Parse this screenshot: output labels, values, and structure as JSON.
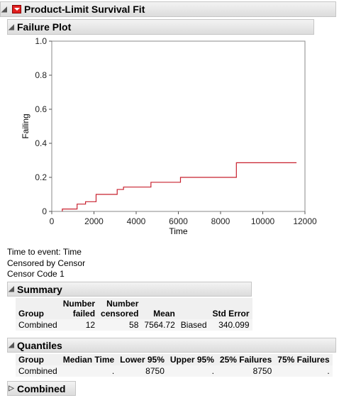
{
  "report": {
    "title": "Product-Limit Survival Fit"
  },
  "failure_plot": {
    "title": "Failure Plot",
    "chart_data": {
      "type": "line",
      "step": true,
      "xlabel": "Time",
      "ylabel": "Failing",
      "xlim": [
        0,
        12000
      ],
      "ylim": [
        0,
        1.0
      ],
      "x_ticks": [
        "0",
        "2000",
        "4000",
        "6000",
        "8000",
        "10000",
        "12000"
      ],
      "y_ticks": [
        "0",
        "0.2",
        "0.4",
        "0.6",
        "0.8",
        "1.0"
      ],
      "color": "#c8202e",
      "x": [
        500,
        1200,
        1600,
        2100,
        3100,
        3400,
        4700,
        6100,
        8750,
        11600
      ],
      "y": [
        0.014,
        0.043,
        0.057,
        0.1,
        0.129,
        0.143,
        0.171,
        0.2,
        0.286,
        0.286
      ]
    }
  },
  "info": {
    "time_label": "Time to event:",
    "time_value": "Time",
    "censored_label": "Censored by",
    "censored_value": "Censor",
    "code_label": "Censor Code",
    "code_value": "1"
  },
  "summary": {
    "title": "Summary",
    "headers": {
      "group": "Group",
      "failed_1": "Number",
      "failed_2": "failed",
      "censored_1": "Number",
      "censored_2": "censored",
      "mean": "Mean",
      "stderr": "Std Error"
    },
    "row": {
      "group": "Combined",
      "failed": "12",
      "censored": "58",
      "mean": "7564.72",
      "note": "Biased",
      "stderr": "340.099"
    }
  },
  "quantiles": {
    "title": "Quantiles",
    "headers": {
      "group": "Group",
      "median": "Median Time",
      "lower": "Lower 95%",
      "upper": "Upper 95%",
      "q25": "25% Failures",
      "q75": "75% Failures"
    },
    "row": {
      "group": "Combined",
      "median": ".",
      "lower": "8750",
      "upper": ".",
      "q25": "8750",
      "q75": "."
    }
  },
  "combined": {
    "title": "Combined"
  }
}
